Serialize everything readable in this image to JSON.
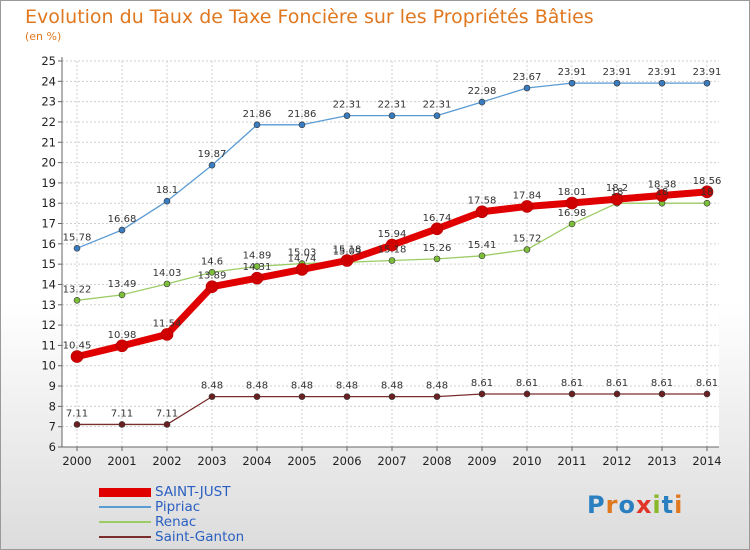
{
  "title": "Evolution du Taux de Taxe Foncière sur les Propriétés Bâties",
  "subtitle": "(en %)",
  "logo": {
    "text": "Proxiti",
    "letter_colors": [
      "#2a7fc1",
      "#e07820",
      "#2a7fc1",
      "#e0352a",
      "#8ab82a",
      "#2a7fc1",
      "#e07820"
    ]
  },
  "chart_data": {
    "type": "line",
    "x": [
      2000,
      2001,
      2002,
      2003,
      2004,
      2005,
      2006,
      2007,
      2008,
      2009,
      2010,
      2011,
      2012,
      2013,
      2014
    ],
    "xlabels": [
      "2000",
      "2001",
      "2002",
      "2003",
      "2004",
      "2005",
      "2006",
      "2007",
      "2008",
      "2009",
      "2010",
      "2011",
      "2012",
      "2013",
      "2014"
    ],
    "ylim": [
      6,
      25
    ],
    "yticks": [
      6,
      7,
      8,
      9,
      10,
      11,
      12,
      13,
      14,
      15,
      16,
      17,
      18,
      19,
      20,
      21,
      22,
      23,
      24,
      25
    ],
    "grid": true,
    "legend_position": "bottom-left",
    "series": [
      {
        "name": "Pipriac",
        "color": "#5a9bd4",
        "marker": "#3a7cc0",
        "width": 1.3,
        "values": [
          15.78,
          16.68,
          18.1,
          19.87,
          21.86,
          21.86,
          22.31,
          22.31,
          22.31,
          22.98,
          23.67,
          23.91,
          23.91,
          23.91,
          23.91
        ],
        "labels": [
          "15.78",
          "16.68",
          "18.1",
          "19.87",
          "21.86",
          "21.86",
          "22.31",
          "22.31",
          "22.31",
          "22.98",
          "23.67",
          "23.91",
          "23.91",
          "23.91",
          "23.91"
        ]
      },
      {
        "name": "Renac",
        "color": "#9ccc65",
        "marker": "#7cbd3a",
        "width": 1.3,
        "values": [
          13.22,
          13.49,
          14.03,
          14.6,
          14.89,
          15.03,
          15.09,
          15.18,
          15.26,
          15.41,
          15.72,
          16.98,
          18,
          18,
          18
        ],
        "labels": [
          "13.22",
          "13.49",
          "14.03",
          "14.6",
          "14.89",
          "15.03",
          "15.09",
          "15.18",
          "15.26",
          "15.41",
          "15.72",
          "16.98",
          "18",
          "18",
          "18"
        ]
      },
      {
        "name": "Saint-Ganton",
        "color": "#7a2d2d",
        "marker": "#6a2020",
        "width": 1.3,
        "values": [
          7.11,
          7.11,
          7.11,
          8.48,
          8.48,
          8.48,
          8.48,
          8.48,
          8.48,
          8.61,
          8.61,
          8.61,
          8.61,
          8.61,
          8.61
        ],
        "labels": [
          "7.11",
          "7.11",
          "7.11",
          "8.48",
          "8.48",
          "8.48",
          "8.48",
          "8.48",
          "8.48",
          "8.61",
          "8.61",
          "8.61",
          "8.61",
          "8.61",
          "8.61"
        ]
      },
      {
        "name": "SAINT-JUST",
        "color": "#e00000",
        "marker": "#d00000",
        "width": 7,
        "values": [
          10.45,
          10.98,
          11.54,
          13.89,
          14.31,
          14.74,
          15.18,
          15.94,
          16.74,
          17.58,
          17.84,
          18.01,
          18.2,
          18.38,
          18.56
        ],
        "labels": [
          "10.45",
          "10.98",
          "11.54",
          "13.89",
          "14.31",
          "14.74",
          "15.18",
          "15.94",
          "16.74",
          "17.58",
          "17.84",
          "18.01",
          "18.2",
          "18.38",
          "18.56"
        ]
      }
    ],
    "legend_order": [
      "SAINT-JUST",
      "Pipriac",
      "Renac",
      "Saint-Ganton"
    ]
  }
}
